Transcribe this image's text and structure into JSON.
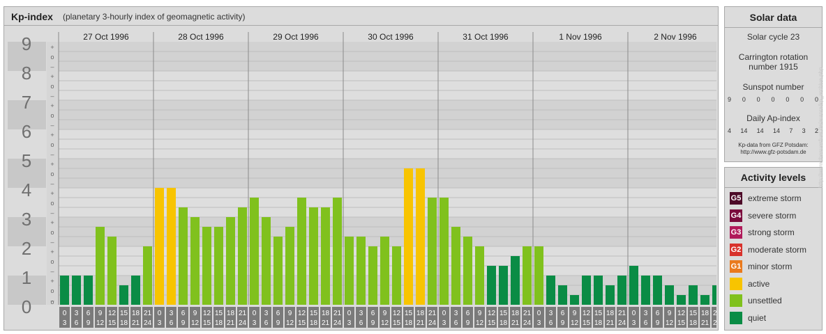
{
  "header": {
    "title": "Kp-index",
    "subtitle": "(planetary 3-hourly index of geomagnetic activity)"
  },
  "chart_data": {
    "type": "bar",
    "title": "Kp-index",
    "subtitle": "(planetary 3-hourly index of geomagnetic activity)",
    "days": [
      "27 Oct 1996",
      "28 Oct 1996",
      "29 Oct 1996",
      "30 Oct 1996",
      "31 Oct 1996",
      "1 Nov 1996",
      "2 Nov 1996"
    ],
    "interval_start_labels": [
      "0",
      "3",
      "6",
      "9",
      "12",
      "15",
      "18",
      "21"
    ],
    "interval_end_labels": [
      "3",
      "6",
      "9",
      "12",
      "15",
      "18",
      "21",
      "24"
    ],
    "y_tick_labels": [
      "0",
      "1",
      "2",
      "3",
      "4",
      "5",
      "6",
      "7",
      "8",
      "9"
    ],
    "thirds_labels": [
      "+",
      "o",
      "–"
    ],
    "ylim": [
      0,
      9
    ],
    "values": [
      1.0,
      1.0,
      1.0,
      2.667,
      2.333,
      0.667,
      1.0,
      2.0,
      4.0,
      4.0,
      3.333,
      3.0,
      2.667,
      2.667,
      3.0,
      3.333,
      3.667,
      3.0,
      2.333,
      2.667,
      3.667,
      3.333,
      3.333,
      3.667,
      2.333,
      2.333,
      2.0,
      2.333,
      2.0,
      4.667,
      4.667,
      3.667,
      3.667,
      2.667,
      2.333,
      2.0,
      1.333,
      1.333,
      1.667,
      2.0,
      2.0,
      1.0,
      0.667,
      0.333,
      1.0,
      1.0,
      0.667,
      1.0,
      1.333,
      1.0,
      1.0,
      0.667,
      0.333,
      0.667,
      0.333,
      0.667
    ],
    "level_colors": {
      "quiet": "#0a8c45",
      "unsettled": "#80c11d",
      "active": "#f8c400"
    },
    "grid": true
  },
  "solar": {
    "title": "Solar data",
    "cycle": "Solar cycle 23",
    "carrington_line1": "Carrington rotation",
    "carrington_line2": "number 1915",
    "sunspot_label": "Sunspot number",
    "sunspot_values": [
      "9",
      "0",
      "0",
      "0",
      "0",
      "0",
      "0"
    ],
    "ap_label": "Daily Ap-index",
    "ap_values": [
      "4",
      "14",
      "14",
      "14",
      "7",
      "3",
      "2"
    ],
    "credit_line1": "Kp-data from GFZ Potsdam:",
    "credit_line2": "http://www.gfz-potsdam.de"
  },
  "activity": {
    "title": "Activity levels",
    "items": [
      {
        "code": "G5",
        "label": "extreme storm",
        "color": "#4d0a28"
      },
      {
        "code": "G4",
        "label": "severe storm",
        "color": "#7a0b3c"
      },
      {
        "code": "G3",
        "label": "strong storm",
        "color": "#b01a5a"
      },
      {
        "code": "G2",
        "label": "moderate storm",
        "color": "#d8322c"
      },
      {
        "code": "G1",
        "label": "minor storm",
        "color": "#ea7a1d"
      },
      {
        "code": "",
        "label": "active",
        "color": "#f8c400"
      },
      {
        "code": "",
        "label": "unsettled",
        "color": "#80c11d"
      },
      {
        "code": "",
        "label": "quiet",
        "color": "#0a8c45"
      }
    ]
  },
  "watermark": "http://www.thesuesfuer.de/aurora/kp_archive.php"
}
